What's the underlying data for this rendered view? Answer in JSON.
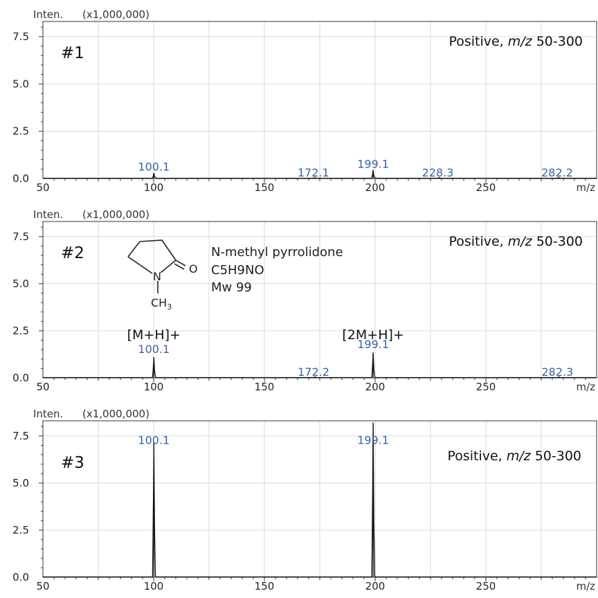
{
  "chart_data": [
    {
      "type": "line",
      "panel_id": "#1",
      "y_axis_title": "Inten.",
      "y_scale_label": "(x1,000,000)",
      "x_axis_title": "m/z",
      "x_ticks": [
        50,
        100,
        150,
        200,
        250
      ],
      "y_ticks": [
        "0.0",
        "2.5",
        "5.0",
        "7.5"
      ],
      "xlim": [
        50,
        300
      ],
      "ylim": [
        0,
        8.3
      ],
      "grid": true,
      "mode_label": {
        "prefix": "Positive, ",
        "italic": "m/z",
        "suffix": " 50-300"
      },
      "peaks": [
        {
          "mz": 100.1,
          "intensity": 0.3
        },
        {
          "mz": 172.1,
          "intensity": 0.03
        },
        {
          "mz": 199.1,
          "intensity": 0.45
        },
        {
          "mz": 228.3,
          "intensity": 0.03
        },
        {
          "mz": 282.2,
          "intensity": 0.03
        }
      ],
      "peak_labels": [
        {
          "text": "100.1",
          "mz": 100.1,
          "y": 0.35
        },
        {
          "text": "172.1",
          "mz": 172.1,
          "y": 0.04
        },
        {
          "text": "199.1",
          "mz": 199.1,
          "y": 0.5
        },
        {
          "text": "228.3",
          "mz": 228.3,
          "y": 0.04
        },
        {
          "text": "282.2",
          "mz": 282.2,
          "y": 0.04
        }
      ]
    },
    {
      "type": "line",
      "panel_id": "#2",
      "y_axis_title": "Inten.",
      "y_scale_label": "(x1,000,000)",
      "x_axis_title": "m/z",
      "x_ticks": [
        50,
        100,
        150,
        200,
        250
      ],
      "y_ticks": [
        "0.0",
        "2.5",
        "5.0",
        "7.5"
      ],
      "xlim": [
        50,
        300
      ],
      "ylim": [
        0,
        8.3
      ],
      "grid": true,
      "mode_label": {
        "prefix": "Positive, ",
        "italic": "m/z",
        "suffix": " 50-300"
      },
      "peaks": [
        {
          "mz": 100.1,
          "intensity": 1.1
        },
        {
          "mz": 172.2,
          "intensity": 0.03
        },
        {
          "mz": 199.1,
          "intensity": 1.35
        },
        {
          "mz": 282.3,
          "intensity": 0.03
        }
      ],
      "peak_labels": [
        {
          "text": "100.1",
          "mz": 100.1,
          "y": 1.25
        },
        {
          "text": "172.2",
          "mz": 172.2,
          "y": 0.04
        },
        {
          "text": "199.1",
          "mz": 199.1,
          "y": 1.5
        },
        {
          "text": "282.3",
          "mz": 282.3,
          "y": 0.04
        }
      ],
      "ion_labels": [
        {
          "text": "[M+H]+",
          "mz": 100.1,
          "y": 2.05
        },
        {
          "text": "[2M+H]+",
          "mz": 199.1,
          "y": 2.05
        }
      ],
      "compound": {
        "name": "N-methyl pyrrolidone",
        "formula": "C5H9NO",
        "mw": "Mw 99",
        "atom_O": "O",
        "atom_N": "N",
        "methyl_base": "CH",
        "methyl_sub": "3"
      }
    },
    {
      "type": "line",
      "panel_id": "#3",
      "y_axis_title": "Inten.",
      "y_scale_label": "(x1,000,000)",
      "x_axis_title": "m/z",
      "x_ticks": [
        50,
        100,
        150,
        200,
        250
      ],
      "y_ticks": [
        "0.0",
        "2.5",
        "5.0",
        "7.5"
      ],
      "xlim": [
        50,
        300
      ],
      "ylim": [
        0,
        8.3
      ],
      "grid": true,
      "mode_label": {
        "prefix": "Positive, ",
        "italic": "m/z",
        "suffix": " 50-300"
      },
      "peaks": [
        {
          "mz": 100.1,
          "intensity": 7.2
        },
        {
          "mz": 199.1,
          "intensity": 8.2
        }
      ],
      "peak_labels": [
        {
          "text": "100.1",
          "mz": 100.1,
          "y": 7.0
        },
        {
          "text": "199.1",
          "mz": 199.1,
          "y": 7.0
        }
      ]
    }
  ]
}
